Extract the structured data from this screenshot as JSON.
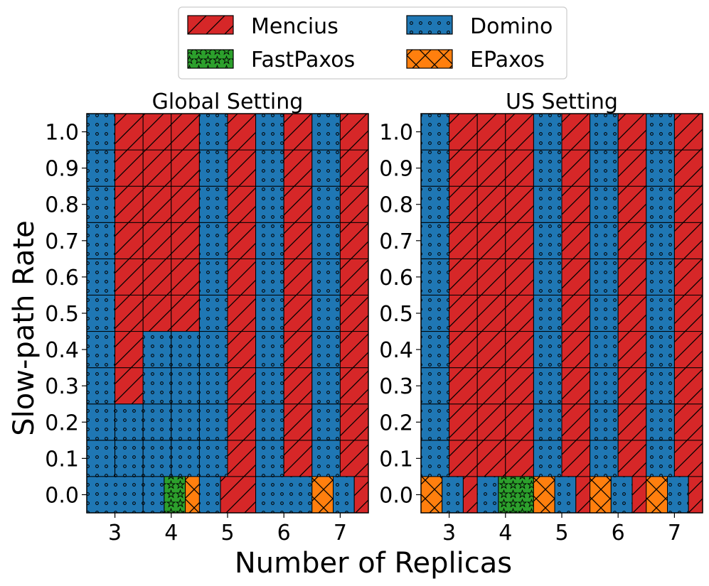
{
  "chart_data": {
    "type": "heatmap",
    "ylabel": "Slow-path Rate",
    "xlabel": "Number of Replicas",
    "y_ticks": [
      "0.0",
      "0.1",
      "0.2",
      "0.3",
      "0.4",
      "0.5",
      "0.6",
      "0.7",
      "0.8",
      "0.9",
      "1.0"
    ],
    "x_ticks": [
      "3",
      "4",
      "5",
      "6",
      "7"
    ],
    "x_range": [
      2.5,
      7.5
    ],
    "y_range": [
      -0.05,
      1.05
    ],
    "legend": {
      "placement": "top-center",
      "entries": [
        {
          "name": "Mencius",
          "key": "M"
        },
        {
          "name": "Domino",
          "key": "D"
        },
        {
          "name": "FastPaxos",
          "key": "F"
        },
        {
          "name": "EPaxos",
          "key": "E"
        }
      ]
    },
    "protocols": {
      "M": {
        "color": "#d62728",
        "hatch": "diagonal"
      },
      "D": {
        "color": "#1f77b4",
        "hatch": "dots"
      },
      "F": {
        "color": "#2ca02c",
        "hatch": "stars"
      },
      "E": {
        "color": "#ff7f0e",
        "hatch": "cross"
      }
    },
    "panels": [
      {
        "title": "Global Setting",
        "zero_row": {
          "3": [
            "D",
            "D",
            "D",
            "D",
            "D",
            "D",
            "D",
            "D"
          ],
          "4": [
            "D",
            "D",
            "D",
            "F",
            "F",
            "F",
            "E",
            "E"
          ],
          "5": [
            "D",
            "D",
            "D",
            "M",
            "M",
            "M",
            "M",
            "M"
          ],
          "6": [
            "D",
            "D",
            "D",
            "D",
            "D",
            "D",
            "D",
            "D"
          ],
          "7": [
            "E",
            "E",
            "E",
            "D",
            "D",
            "D",
            "M",
            "M"
          ]
        },
        "rows": {
          "0.1": {
            "3": [
              "D",
              "D"
            ],
            "4": [
              "D",
              "D"
            ],
            "5": [
              "D",
              "M"
            ],
            "6": [
              "D",
              "M"
            ],
            "7": [
              "D",
              "M"
            ]
          },
          "0.2": {
            "3": [
              "D",
              "D"
            ],
            "4": [
              "D",
              "D"
            ],
            "5": [
              "D",
              "M"
            ],
            "6": [
              "D",
              "M"
            ],
            "7": [
              "D",
              "M"
            ]
          },
          "0.3": {
            "3": [
              "D",
              "M"
            ],
            "4": [
              "D",
              "D"
            ],
            "5": [
              "D",
              "M"
            ],
            "6": [
              "D",
              "M"
            ],
            "7": [
              "D",
              "M"
            ]
          },
          "0.4": {
            "3": [
              "D",
              "M"
            ],
            "4": [
              "D",
              "D"
            ],
            "5": [
              "D",
              "M"
            ],
            "6": [
              "D",
              "M"
            ],
            "7": [
              "D",
              "M"
            ]
          },
          "0.5": {
            "3": [
              "D",
              "M"
            ],
            "4": [
              "M",
              "M"
            ],
            "5": [
              "D",
              "M"
            ],
            "6": [
              "D",
              "M"
            ],
            "7": [
              "D",
              "M"
            ]
          },
          "0.6": {
            "3": [
              "D",
              "M"
            ],
            "4": [
              "M",
              "M"
            ],
            "5": [
              "D",
              "M"
            ],
            "6": [
              "D",
              "M"
            ],
            "7": [
              "D",
              "M"
            ]
          },
          "0.7": {
            "3": [
              "D",
              "M"
            ],
            "4": [
              "M",
              "M"
            ],
            "5": [
              "D",
              "M"
            ],
            "6": [
              "D",
              "M"
            ],
            "7": [
              "D",
              "M"
            ]
          },
          "0.8": {
            "3": [
              "D",
              "M"
            ],
            "4": [
              "M",
              "M"
            ],
            "5": [
              "D",
              "M"
            ],
            "6": [
              "D",
              "M"
            ],
            "7": [
              "D",
              "M"
            ]
          },
          "0.9": {
            "3": [
              "D",
              "M"
            ],
            "4": [
              "M",
              "M"
            ],
            "5": [
              "D",
              "M"
            ],
            "6": [
              "D",
              "M"
            ],
            "7": [
              "D",
              "M"
            ]
          },
          "1.0": {
            "3": [
              "D",
              "M"
            ],
            "4": [
              "M",
              "M"
            ],
            "5": [
              "D",
              "M"
            ],
            "6": [
              "D",
              "M"
            ],
            "7": [
              "D",
              "M"
            ]
          }
        }
      },
      {
        "title": "US Setting",
        "zero_row": {
          "3": [
            "E",
            "E",
            "E",
            "D",
            "D",
            "D",
            "M",
            "M"
          ],
          "4": [
            "D",
            "D",
            "D",
            "F",
            "F",
            "F",
            "F",
            "F"
          ],
          "5": [
            "E",
            "E",
            "E",
            "D",
            "D",
            "D",
            "M",
            "M"
          ],
          "6": [
            "E",
            "E",
            "E",
            "D",
            "D",
            "D",
            "M",
            "M"
          ],
          "7": [
            "E",
            "E",
            "E",
            "D",
            "D",
            "D",
            "M",
            "M"
          ]
        },
        "rows": {
          "0.1": {
            "3": [
              "D",
              "M"
            ],
            "4": [
              "M",
              "M"
            ],
            "5": [
              "D",
              "M"
            ],
            "6": [
              "D",
              "M"
            ],
            "7": [
              "D",
              "M"
            ]
          },
          "0.2": {
            "3": [
              "D",
              "M"
            ],
            "4": [
              "M",
              "M"
            ],
            "5": [
              "D",
              "M"
            ],
            "6": [
              "D",
              "M"
            ],
            "7": [
              "D",
              "M"
            ]
          },
          "0.3": {
            "3": [
              "D",
              "M"
            ],
            "4": [
              "M",
              "M"
            ],
            "5": [
              "D",
              "M"
            ],
            "6": [
              "D",
              "M"
            ],
            "7": [
              "D",
              "M"
            ]
          },
          "0.4": {
            "3": [
              "D",
              "M"
            ],
            "4": [
              "M",
              "M"
            ],
            "5": [
              "D",
              "M"
            ],
            "6": [
              "D",
              "M"
            ],
            "7": [
              "D",
              "M"
            ]
          },
          "0.5": {
            "3": [
              "D",
              "M"
            ],
            "4": [
              "M",
              "M"
            ],
            "5": [
              "D",
              "M"
            ],
            "6": [
              "D",
              "M"
            ],
            "7": [
              "D",
              "M"
            ]
          },
          "0.6": {
            "3": [
              "D",
              "M"
            ],
            "4": [
              "M",
              "M"
            ],
            "5": [
              "D",
              "M"
            ],
            "6": [
              "D",
              "M"
            ],
            "7": [
              "D",
              "M"
            ]
          },
          "0.7": {
            "3": [
              "D",
              "M"
            ],
            "4": [
              "M",
              "M"
            ],
            "5": [
              "D",
              "M"
            ],
            "6": [
              "D",
              "M"
            ],
            "7": [
              "D",
              "M"
            ]
          },
          "0.8": {
            "3": [
              "D",
              "M"
            ],
            "4": [
              "M",
              "M"
            ],
            "5": [
              "D",
              "M"
            ],
            "6": [
              "D",
              "M"
            ],
            "7": [
              "D",
              "M"
            ]
          },
          "0.9": {
            "3": [
              "D",
              "M"
            ],
            "4": [
              "M",
              "M"
            ],
            "5": [
              "D",
              "M"
            ],
            "6": [
              "D",
              "M"
            ],
            "7": [
              "D",
              "M"
            ]
          },
          "1.0": {
            "3": [
              "D",
              "M"
            ],
            "4": [
              "M",
              "M"
            ],
            "5": [
              "D",
              "M"
            ],
            "6": [
              "D",
              "M"
            ],
            "7": [
              "D",
              "M"
            ]
          }
        }
      }
    ]
  }
}
